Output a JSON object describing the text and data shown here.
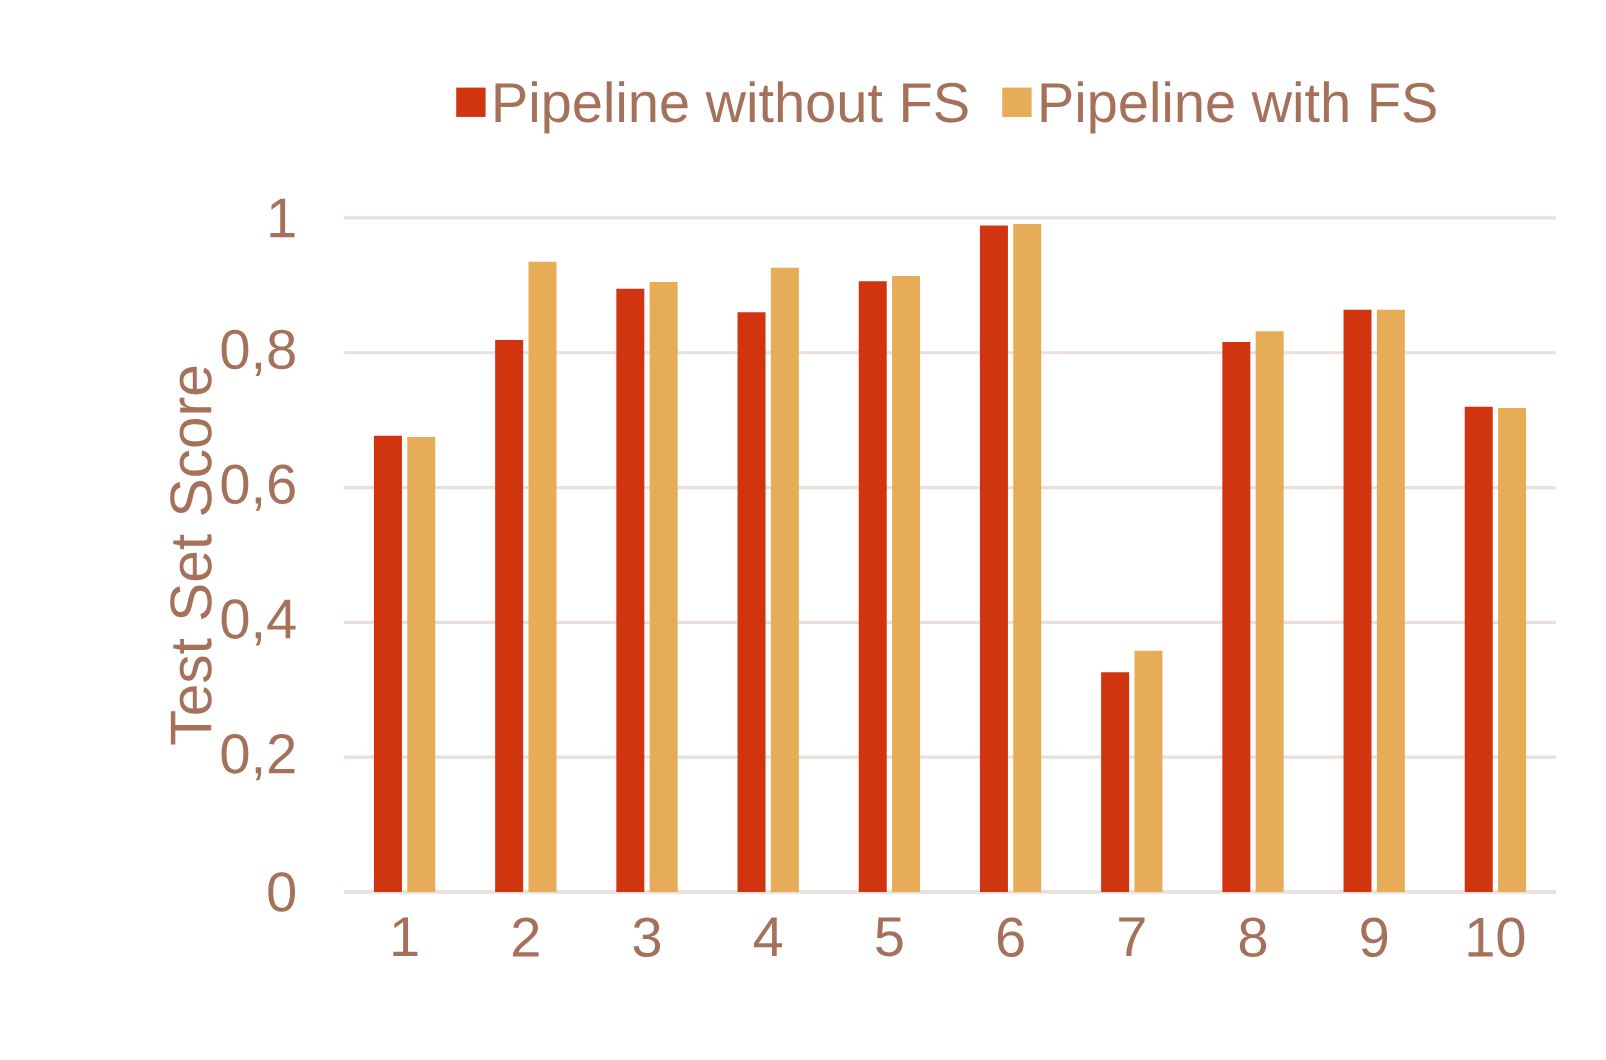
{
  "chart_data": {
    "type": "bar",
    "ylabel": "Test Set Score",
    "categories": [
      "1",
      "2",
      "3",
      "4",
      "5",
      "6",
      "7",
      "8",
      "9",
      "10"
    ],
    "series": [
      {
        "name": "Pipeline without FS",
        "color": "#d13510",
        "values": [
          0.677,
          0.819,
          0.895,
          0.86,
          0.906,
          0.989,
          0.326,
          0.816,
          0.864,
          0.72
        ]
      },
      {
        "name": "Pipeline with FS",
        "color": "#e6ac58",
        "values": [
          0.675,
          0.935,
          0.905,
          0.926,
          0.914,
          0.991,
          0.358,
          0.832,
          0.864,
          0.718
        ]
      }
    ],
    "ylim": [
      0,
      1
    ],
    "yticks": [
      0,
      {
        "value": 0.2,
        "label": "0,2"
      },
      {
        "value": 0.4,
        "label": "0,4"
      },
      {
        "value": 0.6,
        "label": "0,6"
      },
      {
        "value": 0.8,
        "label": "0,8"
      },
      1
    ],
    "grid": "y",
    "legend": "top"
  }
}
